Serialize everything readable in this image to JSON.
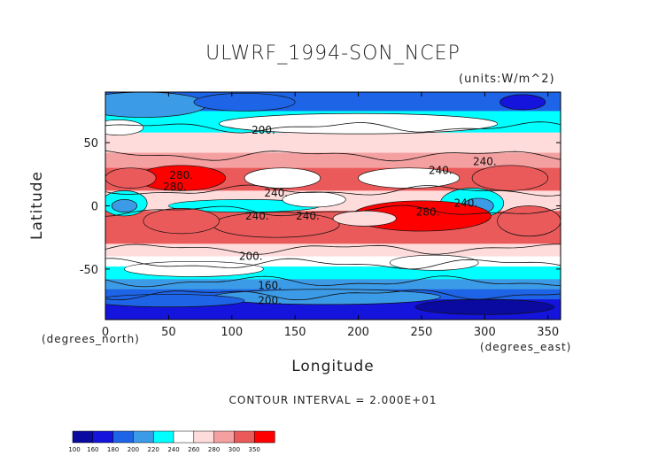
{
  "title": "ULWRF_1994-SON_NCEP",
  "units": "(units:W/m^2)",
  "contour_interval": "CONTOUR INTERVAL = 2.000E+01",
  "chart_data": {
    "type": "heatmap",
    "title": "ULWRF_1994-SON_NCEP",
    "xlabel": "Longitude",
    "ylabel": "Latitude",
    "x_unit_label": "(degrees_east)",
    "y_unit_label": "(degrees_north)",
    "xlim": [
      0,
      360
    ],
    "ylim": [
      -90,
      90
    ],
    "x_ticks": [
      0,
      50,
      100,
      150,
      200,
      250,
      300,
      350
    ],
    "y_ticks": [
      -50,
      0,
      50
    ],
    "contour_labels": [
      "200.",
      "240.",
      "280.",
      "240.",
      "280.",
      "240.",
      "240.",
      "280.",
      "240.",
      "240.",
      "200.",
      "160.",
      "200."
    ],
    "colorbar": {
      "levels": [
        100,
        160,
        180,
        200,
        220,
        240,
        260,
        280,
        300,
        350
      ],
      "colors": [
        "#0a0aa0",
        "#1414dc",
        "#1e64e6",
        "#3c9be6",
        "#00ffff",
        "#ffffff",
        "#ffdcdc",
        "#f5a0a0",
        "#eb5a5a",
        "#ff0000"
      ]
    },
    "regions": [
      {
        "lat": 60,
        "lon_start": 0,
        "lon_end": 360,
        "band": "cyan, 200-220"
      },
      {
        "lat": 25,
        "lon_start": 40,
        "lon_end": 75,
        "band": "red, >300"
      },
      {
        "lat": 0,
        "lon_start": 10,
        "lon_end": 20,
        "band": "cyan, 200-220"
      },
      {
        "lat": -10,
        "lon_start": 230,
        "lon_end": 280,
        "band": "red, 280-300"
      },
      {
        "lat": -80,
        "lon_start": 0,
        "lon_end": 360,
        "band": "dark blue, <160"
      }
    ]
  }
}
